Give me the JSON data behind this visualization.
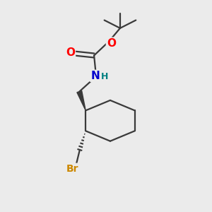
{
  "background_color": "#ebebeb",
  "bond_color": "#3a3a3a",
  "atom_colors": {
    "O": "#ff0000",
    "N": "#0000cc",
    "H": "#008080",
    "Br": "#cc8800",
    "C": "#3a3a3a"
  },
  "figsize": [
    3.0,
    3.0
  ],
  "dpi": 100
}
